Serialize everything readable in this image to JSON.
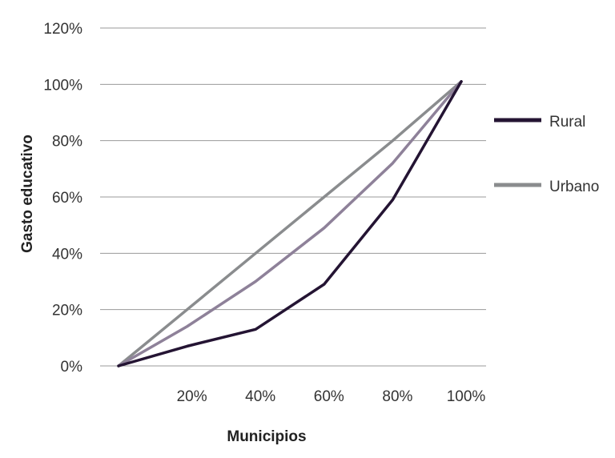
{
  "chart_data": {
    "type": "line",
    "xlabel": "Municipios",
    "ylabel": "Gasto educativo",
    "x_ticks": [
      "20%",
      "40%",
      "60%",
      "80%",
      "100%"
    ],
    "y_ticks": [
      "0%",
      "20%",
      "40%",
      "60%",
      "80%",
      "100%",
      "120%"
    ],
    "xlim": [
      0,
      100
    ],
    "ylim": [
      0,
      120
    ],
    "grid": "horizontal",
    "legend_position": "right",
    "x": [
      0,
      20,
      40,
      60,
      80,
      100
    ],
    "series": [
      {
        "name": "Rural",
        "color": "#241433",
        "values": [
          0,
          7,
          13,
          29,
          59,
          101
        ]
      },
      {
        "name": "Urbano",
        "color": "#8a8c8e",
        "values": [
          0,
          20,
          40,
          60,
          80,
          101
        ]
      }
    ],
    "extra_lines": [
      {
        "color": "#8e8199",
        "values": [
          0,
          14,
          30,
          49,
          72,
          101
        ]
      }
    ]
  }
}
